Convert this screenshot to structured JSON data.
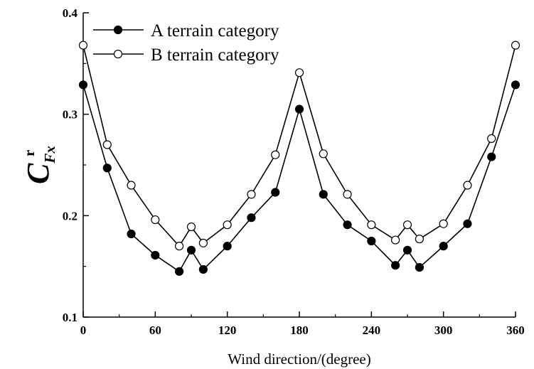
{
  "chart_data": {
    "type": "line",
    "xlabel": "Wind direction/(degree)",
    "ylabel": {
      "main": "C",
      "sup": "r",
      "sub": "Fx"
    },
    "xlim": [
      0,
      360
    ],
    "ylim": [
      0.1,
      0.4
    ],
    "x_ticks": [
      0,
      60,
      120,
      180,
      240,
      300,
      360
    ],
    "y_ticks": [
      0.1,
      0.2,
      0.3,
      0.4
    ],
    "legend_position": "top-left",
    "grid": false,
    "x": [
      0,
      20,
      40,
      60,
      80,
      90,
      100,
      120,
      140,
      160,
      180,
      200,
      220,
      240,
      260,
      270,
      280,
      300,
      320,
      340,
      360
    ],
    "series": [
      {
        "name": "A terrain category",
        "marker": "filled-circle",
        "values": [
          0.329,
          0.247,
          0.182,
          0.161,
          0.145,
          0.166,
          0.147,
          0.17,
          0.198,
          0.223,
          0.305,
          0.221,
          0.191,
          0.175,
          0.151,
          0.166,
          0.149,
          0.17,
          0.192,
          0.258,
          0.329
        ]
      },
      {
        "name": "B terrain category",
        "marker": "open-circle",
        "values": [
          0.368,
          0.27,
          0.23,
          0.196,
          0.17,
          0.189,
          0.173,
          0.191,
          0.221,
          0.26,
          0.341,
          0.261,
          0.221,
          0.191,
          0.176,
          0.191,
          0.177,
          0.192,
          0.23,
          0.276,
          0.368
        ]
      }
    ]
  }
}
